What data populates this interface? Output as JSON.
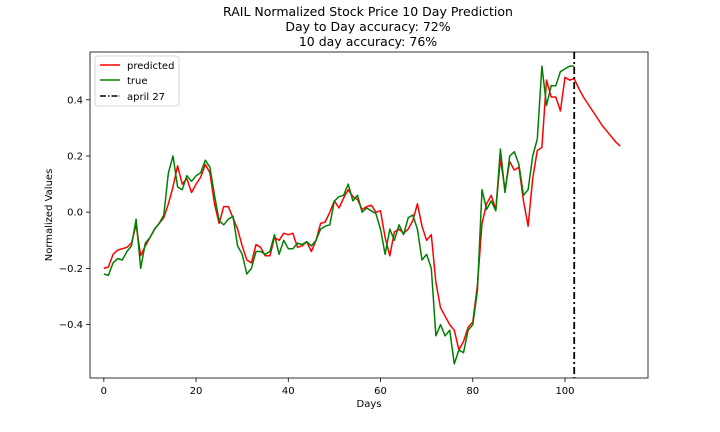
{
  "chart_data": {
    "type": "line",
    "title_lines": [
      "RAIL Normalized Stock Price 10 Day Prediction",
      "Day to Day accuracy: 72%",
      "10 day accuracy: 76%"
    ],
    "xlabel": "Days",
    "ylabel": "Normalized Values",
    "xlim": [
      -3,
      118
    ],
    "ylim": [
      -0.59,
      0.57
    ],
    "x_ticks": [
      0,
      20,
      40,
      60,
      80,
      100
    ],
    "y_ticks": [
      -0.4,
      -0.2,
      0.0,
      0.2,
      0.4
    ],
    "y_tick_labels": [
      "−0.4",
      "−0.2",
      "0.0",
      "0.2",
      "0.4"
    ],
    "grid": false,
    "legend_position": "top-left",
    "series": [
      {
        "name": "predicted",
        "color": "#ff0000",
        "x": [
          0,
          1,
          2,
          3,
          4,
          5,
          6,
          7,
          8,
          9,
          10,
          11,
          12,
          13,
          14,
          15,
          16,
          17,
          18,
          19,
          20,
          21,
          22,
          23,
          24,
          25,
          26,
          27,
          28,
          29,
          30,
          31,
          32,
          33,
          34,
          35,
          36,
          37,
          38,
          39,
          40,
          41,
          42,
          43,
          44,
          45,
          46,
          47,
          48,
          49,
          50,
          51,
          52,
          53,
          54,
          55,
          56,
          57,
          58,
          59,
          60,
          61,
          62,
          63,
          64,
          65,
          66,
          67,
          68,
          69,
          70,
          71,
          72,
          73,
          74,
          75,
          76,
          77,
          78,
          79,
          80,
          81,
          82,
          83,
          84,
          85,
          86,
          87,
          88,
          89,
          90,
          91,
          92,
          93,
          94,
          95,
          96,
          97,
          98,
          99,
          100,
          101,
          102,
          103,
          104,
          105,
          106,
          107,
          108,
          109,
          110,
          111,
          112
        ],
        "values": [
          -0.2,
          -0.195,
          -0.15,
          -0.135,
          -0.13,
          -0.125,
          -0.11,
          -0.045,
          -0.155,
          -0.12,
          -0.09,
          -0.06,
          -0.04,
          -0.02,
          0.03,
          0.09,
          0.165,
          0.1,
          0.12,
          0.07,
          0.1,
          0.125,
          0.17,
          0.14,
          0.03,
          -0.04,
          0.02,
          0.02,
          -0.02,
          -0.06,
          -0.12,
          -0.17,
          -0.18,
          -0.115,
          -0.125,
          -0.155,
          -0.155,
          -0.09,
          -0.1,
          -0.075,
          -0.08,
          -0.075,
          -0.125,
          -0.12,
          -0.105,
          -0.14,
          -0.1,
          -0.04,
          -0.035,
          0.0,
          0.04,
          0.015,
          0.05,
          0.08,
          0.055,
          0.045,
          0.01,
          0.02,
          0.025,
          0.0,
          0.005,
          -0.09,
          -0.155,
          -0.07,
          -0.06,
          -0.075,
          -0.06,
          -0.03,
          0.03,
          -0.05,
          -0.1,
          -0.08,
          -0.25,
          -0.34,
          -0.37,
          -0.4,
          -0.42,
          -0.49,
          -0.46,
          -0.41,
          -0.39,
          -0.26,
          -0.04,
          0.03,
          0.06,
          0.01,
          0.19,
          0.08,
          0.18,
          0.15,
          0.16,
          0.04,
          -0.05,
          0.12,
          0.22,
          0.23,
          0.47,
          0.41,
          0.41,
          0.36,
          0.48,
          0.47,
          0.475,
          0.44,
          0.41,
          0.385,
          0.36,
          0.335,
          0.31,
          0.29,
          0.27,
          0.25,
          0.235
        ]
      },
      {
        "name": "true",
        "color": "#008000",
        "x": [
          0,
          1,
          2,
          3,
          4,
          5,
          6,
          7,
          8,
          9,
          10,
          11,
          12,
          13,
          14,
          15,
          16,
          17,
          18,
          19,
          20,
          21,
          22,
          23,
          24,
          25,
          26,
          27,
          28,
          29,
          30,
          31,
          32,
          33,
          34,
          35,
          36,
          37,
          38,
          39,
          40,
          41,
          42,
          43,
          44,
          45,
          46,
          47,
          48,
          49,
          50,
          51,
          52,
          53,
          54,
          55,
          56,
          57,
          58,
          59,
          60,
          61,
          62,
          63,
          64,
          65,
          66,
          67,
          68,
          69,
          70,
          71,
          72,
          73,
          74,
          75,
          76,
          77,
          78,
          79,
          80,
          81,
          82,
          83,
          84,
          85,
          86,
          87,
          88,
          89,
          90,
          91,
          92,
          93,
          94,
          95,
          96,
          97,
          98,
          99,
          100,
          101,
          102
        ],
        "values": [
          -0.22,
          -0.225,
          -0.18,
          -0.165,
          -0.17,
          -0.14,
          -0.12,
          -0.025,
          -0.2,
          -0.11,
          -0.09,
          -0.06,
          -0.04,
          -0.01,
          0.14,
          0.2,
          0.09,
          0.08,
          0.13,
          0.11,
          0.13,
          0.14,
          0.185,
          0.16,
          0.06,
          -0.03,
          -0.045,
          -0.025,
          -0.015,
          -0.12,
          -0.15,
          -0.22,
          -0.2,
          -0.14,
          -0.14,
          -0.15,
          -0.14,
          -0.08,
          -0.15,
          -0.1,
          -0.13,
          -0.13,
          -0.11,
          -0.115,
          -0.105,
          -0.12,
          -0.1,
          -0.06,
          -0.05,
          -0.045,
          0.04,
          0.055,
          0.06,
          0.1,
          0.04,
          0.06,
          0.0,
          0.015,
          0.005,
          -0.005,
          -0.06,
          -0.15,
          -0.06,
          -0.1,
          -0.045,
          -0.08,
          -0.02,
          -0.01,
          -0.06,
          -0.17,
          -0.15,
          -0.2,
          -0.44,
          -0.4,
          -0.44,
          -0.42,
          -0.54,
          -0.49,
          -0.5,
          -0.42,
          -0.4,
          -0.28,
          0.08,
          0.01,
          0.04,
          0.005,
          0.225,
          0.07,
          0.2,
          0.215,
          0.17,
          0.06,
          0.08,
          0.2,
          0.26,
          0.52,
          0.38,
          0.45,
          0.45,
          0.5,
          0.51,
          0.52,
          0.52
        ]
      }
    ],
    "vline": {
      "x": 102,
      "name": "april 27",
      "color": "#000000",
      "style": "dashdot"
    }
  }
}
